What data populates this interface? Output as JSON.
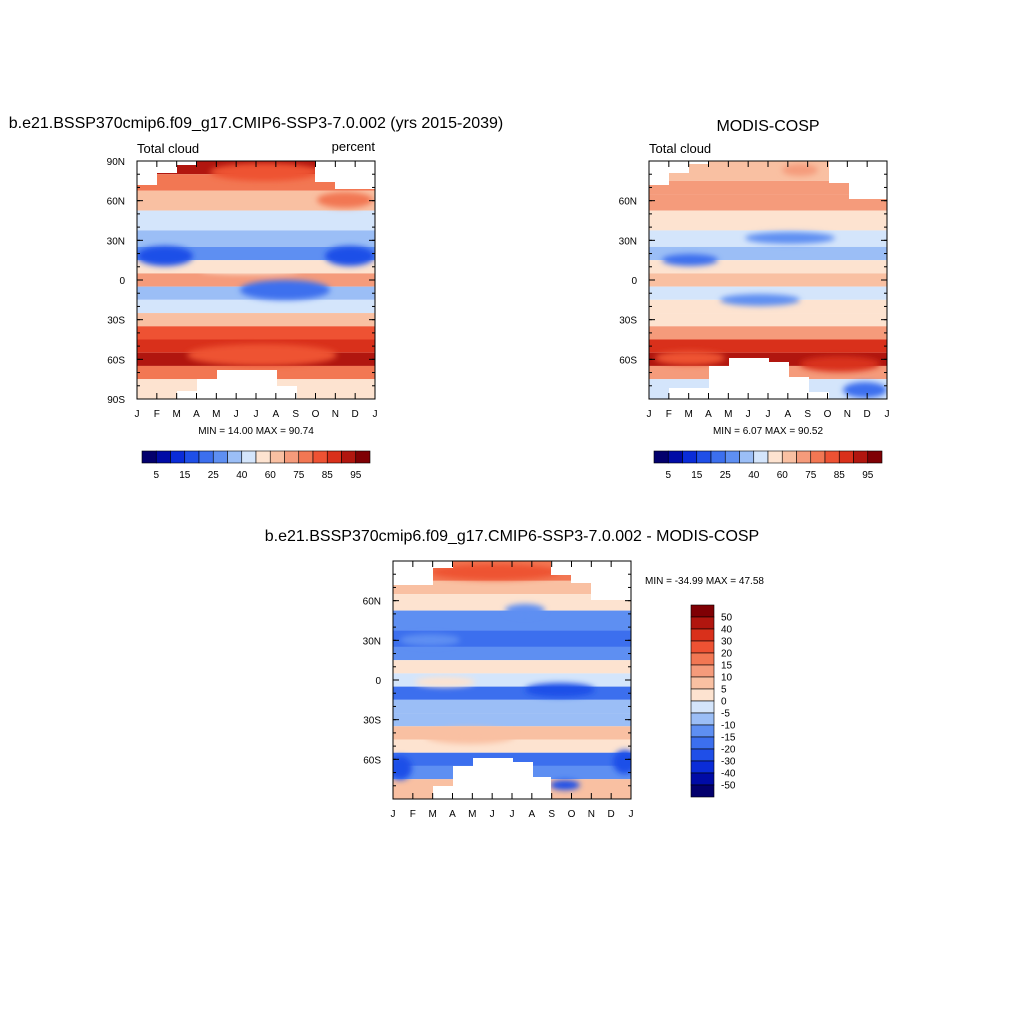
{
  "panels": [
    {
      "id": "model",
      "title": "b.e21.BSSP370cmip6.f09_g17.CMIP6-SSP3-7.0.002 (yrs 2015-2039)",
      "left_label": "Total cloud",
      "right_label": "percent",
      "stats": "MIN =  14.00 MAX =  90.74"
    },
    {
      "id": "obs",
      "title": "MODIS-COSP",
      "left_label": "Total cloud",
      "right_label": "",
      "stats": "MIN =   6.07 MAX =  90.52"
    },
    {
      "id": "diff",
      "title": "b.e21.BSSP370cmip6.f09_g17.CMIP6-SSP3-7.0.002 - MODIS-COSP",
      "left_label": "",
      "right_label": "",
      "stats": "MIN = -34.99 MAX =  47.58"
    }
  ],
  "chart_data": [
    {
      "type": "heatmap",
      "title": "b.e21.BSSP370cmip6.f09_g17.CMIP6-SSP3-7.0.002 (yrs 2015-2039)",
      "variable": "Total cloud",
      "units": "percent",
      "x_ticks": [
        "J",
        "F",
        "M",
        "A",
        "M",
        "J",
        "J",
        "A",
        "S",
        "O",
        "N",
        "D",
        "J"
      ],
      "y_ticks": [
        "90N",
        "60N",
        "30N",
        "0",
        "30S",
        "60S",
        "90S"
      ],
      "y_tick_values": [
        90,
        60,
        30,
        0,
        -30,
        -60,
        -90
      ],
      "ylim": [
        -90,
        90
      ],
      "min": 14.0,
      "max": 90.74,
      "levels": [
        5,
        10,
        15,
        20,
        25,
        30,
        40,
        50,
        60,
        65,
        70,
        75,
        80,
        85,
        90,
        95
      ],
      "colorbar_labels": [
        "5",
        "15",
        "25",
        "40",
        "60",
        "75",
        "85",
        "95"
      ],
      "zonal_profile_lat": [
        85,
        75,
        60,
        45,
        30,
        20,
        10,
        0,
        -10,
        -20,
        -30,
        -40,
        -50,
        -60,
        -70,
        -80
      ],
      "zonal_profile_value": [
        88,
        72,
        62,
        50,
        38,
        28,
        52,
        66,
        40,
        50,
        62,
        78,
        85,
        90,
        72,
        60
      ]
    },
    {
      "type": "heatmap",
      "title": "MODIS-COSP",
      "variable": "Total cloud",
      "x_ticks": [
        "J",
        "F",
        "M",
        "A",
        "M",
        "J",
        "J",
        "A",
        "S",
        "O",
        "N",
        "D",
        "J"
      ],
      "y_ticks": [
        "60N",
        "30N",
        "0",
        "30S",
        "60S"
      ],
      "y_tick_values": [
        60,
        30,
        0,
        -30,
        -60
      ],
      "ylim": [
        -90,
        90
      ],
      "min": 6.07,
      "max": 90.52,
      "levels": [
        5,
        10,
        15,
        20,
        25,
        30,
        40,
        50,
        60,
        65,
        70,
        75,
        80,
        85,
        90,
        95
      ],
      "colorbar_labels": [
        "5",
        "15",
        "25",
        "40",
        "60",
        "75",
        "85",
        "95"
      ],
      "zonal_profile_lat": [
        80,
        70,
        60,
        45,
        30,
        20,
        10,
        0,
        -10,
        -20,
        -30,
        -40,
        -50,
        -60,
        -70,
        -80
      ],
      "zonal_profile_value": [
        62,
        68,
        66,
        58,
        50,
        38,
        52,
        62,
        50,
        55,
        60,
        70,
        82,
        90,
        68,
        50
      ]
    },
    {
      "type": "heatmap",
      "title": "b.e21.BSSP370cmip6.f09_g17.CMIP6-SSP3-7.0.002 - MODIS-COSP",
      "x_ticks": [
        "J",
        "F",
        "M",
        "A",
        "M",
        "J",
        "J",
        "A",
        "S",
        "O",
        "N",
        "D",
        "J"
      ],
      "y_ticks": [
        "60N",
        "30N",
        "0",
        "30S",
        "60S"
      ],
      "y_tick_values": [
        60,
        30,
        0,
        -30,
        -60
      ],
      "ylim": [
        -90,
        90
      ],
      "min": -34.99,
      "max": 47.58,
      "levels": [
        -50,
        -40,
        -30,
        -20,
        -15,
        -10,
        -5,
        0,
        5,
        10,
        15,
        20,
        30,
        40,
        50
      ],
      "colorbar_labels": [
        "50",
        "40",
        "30",
        "20",
        "15",
        "10",
        "5",
        "0",
        "-5",
        "-10",
        "-15",
        "-20",
        "-30",
        "-40",
        "-50"
      ],
      "zonal_profile_lat": [
        80,
        70,
        60,
        45,
        30,
        20,
        10,
        0,
        -10,
        -20,
        -30,
        -40,
        -50,
        -60,
        -70,
        -80
      ],
      "zonal_profile_value": [
        20,
        8,
        2,
        -12,
        -15,
        -10,
        3,
        -3,
        -18,
        -8,
        -5,
        8,
        2,
        -15,
        -10,
        10
      ]
    }
  ],
  "colors": {
    "seq": [
      "#03006d",
      "#000ba6",
      "#0a2cd8",
      "#1f4fe8",
      "#3c6fee",
      "#5e8ff2",
      "#9bbef6",
      "#d4e5fb",
      "#fde3d0",
      "#f9c0a2",
      "#f59b7b",
      "#f27753",
      "#ee5233",
      "#d9301b",
      "#b1160f",
      "#7f0004"
    ],
    "div": [
      "#03006d",
      "#000ba6",
      "#0a2cd8",
      "#1f4fe8",
      "#3c6fee",
      "#5e8ff2",
      "#9bbef6",
      "#d4e5fb",
      "#fde3d0",
      "#f9c0a2",
      "#f59b7b",
      "#f27753",
      "#ee5233",
      "#d9301b",
      "#b1160f",
      "#7f0004"
    ],
    "frame": "#000000"
  }
}
